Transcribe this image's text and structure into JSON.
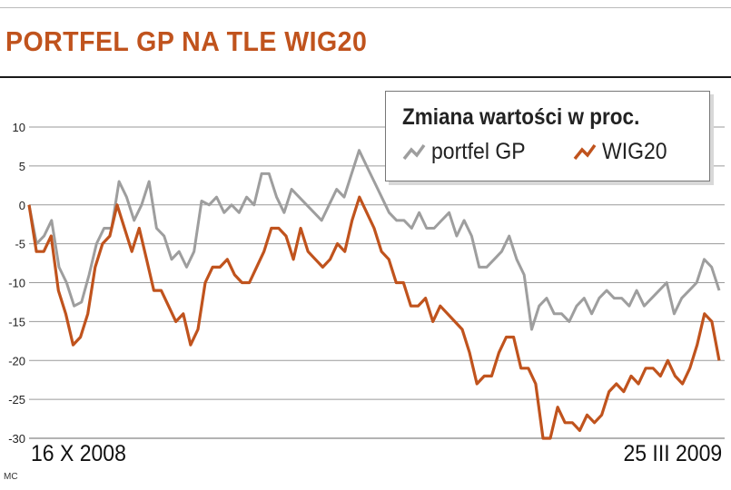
{
  "header": {
    "title": "PORTFEL GP NA TLE WIG20"
  },
  "footer": {
    "credit": "MC"
  },
  "colors": {
    "portfel": "#9e9e9e",
    "wig20": "#c0531d",
    "title": "#c0531d",
    "grid": "#9a9a9a"
  },
  "chart_data": {
    "type": "line",
    "title": "Zmiana wartości w proc.",
    "x_start_label": "16 X 2008",
    "x_end_label": "25 III 2009",
    "ylim": [
      -30,
      10
    ],
    "yticks": [
      10,
      5,
      0,
      -5,
      -10,
      -15,
      -20,
      -25,
      -30
    ],
    "grid": true,
    "legend_position": "top-right",
    "series": [
      {
        "name": "portfel GP",
        "values": [
          0,
          -5,
          -4,
          -2,
          -8,
          -10,
          -13,
          -12.5,
          -9,
          -5,
          -3,
          -3,
          3,
          1,
          -2,
          0,
          3,
          -3,
          -4,
          -7,
          -6,
          -8,
          -6,
          0.5,
          0,
          1,
          -1,
          0,
          -1,
          1,
          0,
          4,
          4,
          1,
          -1,
          2,
          1,
          0,
          -1,
          -2,
          0,
          2,
          1,
          4,
          7,
          5,
          3,
          1,
          -1,
          -2,
          -2,
          -3,
          -1,
          -3,
          -3,
          -2,
          -1,
          -4,
          -2,
          -4,
          -8,
          -8,
          -7,
          -6,
          -4,
          -7,
          -9,
          -16,
          -13,
          -12,
          -14,
          -14,
          -15,
          -13,
          -12,
          -14,
          -12,
          -11,
          -12,
          -12,
          -13,
          -11,
          -13,
          -12,
          -11,
          -10,
          -14,
          -12,
          -11,
          -10,
          -7,
          -8,
          -11
        ]
      },
      {
        "name": "WIG20",
        "values": [
          0,
          -6,
          -6,
          -4,
          -11,
          -14,
          -18,
          -17,
          -14,
          -8,
          -5,
          -4,
          0,
          -3,
          -6,
          -3,
          -7,
          -11,
          -11,
          -13,
          -15,
          -14,
          -18,
          -16,
          -10,
          -8,
          -8,
          -7,
          -9,
          -10,
          -10,
          -8,
          -6,
          -3,
          -3,
          -4,
          -7,
          -3,
          -6,
          -7,
          -8,
          -7,
          -5,
          -6,
          -2,
          1,
          -1,
          -3,
          -6,
          -7,
          -10,
          -10,
          -13,
          -13,
          -12,
          -15,
          -13,
          -14,
          -15,
          -16,
          -19,
          -23,
          -22,
          -22,
          -19,
          -17,
          -17,
          -21,
          -21,
          -23,
          -30,
          -30,
          -26,
          -28,
          -28,
          -29,
          -27,
          -28,
          -27,
          -24,
          -23,
          -24,
          -22,
          -23,
          -21,
          -21,
          -22,
          -20,
          -22,
          -23,
          -21,
          -18,
          -14,
          -15,
          -20
        ]
      }
    ]
  }
}
